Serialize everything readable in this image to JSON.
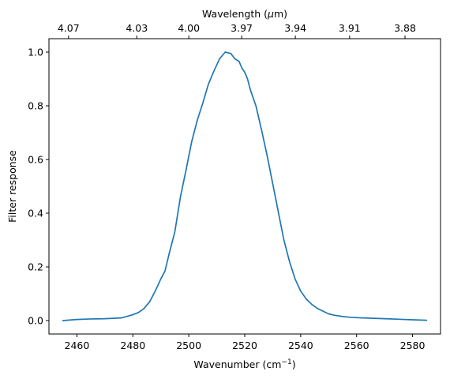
{
  "chart_data": {
    "type": "line",
    "xlabel": "Wavenumber (cm",
    "xlabel_sup": "−1",
    "xlabel_close": ")",
    "ylabel": "Filter response",
    "top_xlabel_prefix": "Wavelength (",
    "top_xlabel_symbol": "μ",
    "top_xlabel_suffix": "m)",
    "xlim": [
      2450,
      2590
    ],
    "ylim": [
      -0.05,
      1.05
    ],
    "x_ticks": [
      2460,
      2480,
      2500,
      2520,
      2540,
      2560,
      2580
    ],
    "y_ticks": [
      0.0,
      0.2,
      0.4,
      0.6,
      0.8,
      1.0
    ],
    "y_tick_labels": [
      "0.0",
      "0.2",
      "0.4",
      "0.6",
      "0.8",
      "1.0"
    ],
    "top_ticks": [
      {
        "label": "4.07",
        "wavenumber": 2457.0
      },
      {
        "label": "4.03",
        "wavenumber": 2481.4
      },
      {
        "label": "4.00",
        "wavenumber": 2500.0
      },
      {
        "label": "3.97",
        "wavenumber": 2518.9
      },
      {
        "label": "3.94",
        "wavenumber": 2538.1
      },
      {
        "label": "3.91",
        "wavenumber": 2557.5
      },
      {
        "label": "3.88",
        "wavenumber": 2577.3
      }
    ],
    "grid": false,
    "series": [
      {
        "color": "#1f77b4",
        "x": [
          2455,
          2460,
          2465,
          2470,
          2476,
          2480,
          2482,
          2484,
          2486,
          2488,
          2490,
          2491.5,
          2493,
          2495,
          2497,
          2499,
          2501,
          2503,
          2505,
          2507,
          2509,
          2511,
          2513,
          2515,
          2516.5,
          2518,
          2519,
          2520,
          2521,
          2522,
          2523,
          2524,
          2526,
          2528,
          2530,
          2532,
          2534,
          2536,
          2538,
          2540,
          2542,
          2544,
          2546,
          2548,
          2550,
          2552,
          2555,
          2558,
          2562,
          2570,
          2580,
          2585
        ],
        "y": [
          0.0,
          0.004,
          0.006,
          0.007,
          0.01,
          0.022,
          0.03,
          0.045,
          0.07,
          0.11,
          0.155,
          0.185,
          0.25,
          0.33,
          0.46,
          0.56,
          0.665,
          0.745,
          0.81,
          0.88,
          0.93,
          0.975,
          1.0,
          0.995,
          0.975,
          0.965,
          0.94,
          0.925,
          0.9,
          0.86,
          0.83,
          0.8,
          0.71,
          0.615,
          0.51,
          0.405,
          0.3,
          0.22,
          0.155,
          0.11,
          0.08,
          0.06,
          0.045,
          0.035,
          0.025,
          0.02,
          0.015,
          0.012,
          0.01,
          0.007,
          0.003,
          0.001
        ]
      }
    ]
  }
}
